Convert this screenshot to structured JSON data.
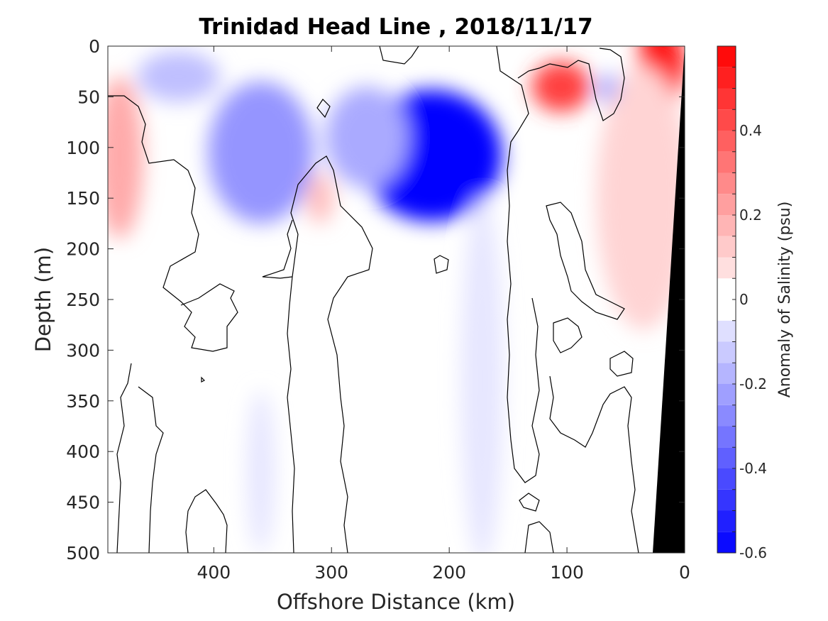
{
  "chart_data": {
    "type": "heatmap",
    "title": "Trinidad Head Line , 2018/11/17",
    "xlabel": "Offshore Distance (km)",
    "ylabel": "Depth (m)",
    "xlim": [
      490,
      0
    ],
    "ylim": [
      0,
      500
    ],
    "x_ticks": [
      400,
      300,
      200,
      100,
      0
    ],
    "y_ticks": [
      0,
      50,
      100,
      150,
      200,
      250,
      300,
      350,
      400,
      450,
      500
    ],
    "colorbar": {
      "label": "Anomaly of Salinity (psu)",
      "range": [
        -0.6,
        0.6
      ],
      "levels": 24,
      "ticks": [
        "0.4",
        "0.2",
        "0",
        "-0.2",
        "-0.4",
        "-0.6"
      ],
      "tick_values": [
        0.4,
        0.2,
        0,
        -0.2,
        -0.4,
        -0.6
      ]
    },
    "colors": {
      "negative": "#0000ff",
      "positive": "#ff0000",
      "zero": "#ffffff",
      "bottom": "#000000"
    },
    "features": [
      {
        "kind": "positive",
        "x": 480,
        "y": 110,
        "rx": 20,
        "ry": 80,
        "value": 0.2
      },
      {
        "kind": "negative",
        "x": 360,
        "y": 105,
        "rx": 45,
        "ry": 70,
        "value": -0.25
      },
      {
        "kind": "negative",
        "x": 430,
        "y": 30,
        "rx": 35,
        "ry": 25,
        "value": -0.15
      },
      {
        "kind": "negative",
        "x": 215,
        "y": 108,
        "rx": 60,
        "ry": 65,
        "value": -0.6
      },
      {
        "kind": "negative",
        "x": 270,
        "y": 90,
        "rx": 35,
        "ry": 50,
        "value": -0.2
      },
      {
        "kind": "positive",
        "x": 105,
        "y": 40,
        "rx": 25,
        "ry": 25,
        "value": 0.45
      },
      {
        "kind": "negative",
        "x": 65,
        "y": 42,
        "rx": 10,
        "ry": 15,
        "value": -0.2
      },
      {
        "kind": "positive",
        "x": 20,
        "y": 20,
        "rx": 20,
        "ry": 45,
        "value": 0.55
      },
      {
        "kind": "positive",
        "x": 35,
        "y": 150,
        "rx": 40,
        "ry": 130,
        "value": 0.1
      },
      {
        "kind": "positive",
        "x": 310,
        "y": 150,
        "rx": 12,
        "ry": 25,
        "value": 0.15
      },
      {
        "kind": "negative",
        "x": 172,
        "y": 330,
        "rx": 18,
        "ry": 180,
        "value": -0.06
      },
      {
        "kind": "negative",
        "x": 360,
        "y": 420,
        "rx": 12,
        "ry": 80,
        "value": -0.06
      }
    ]
  }
}
